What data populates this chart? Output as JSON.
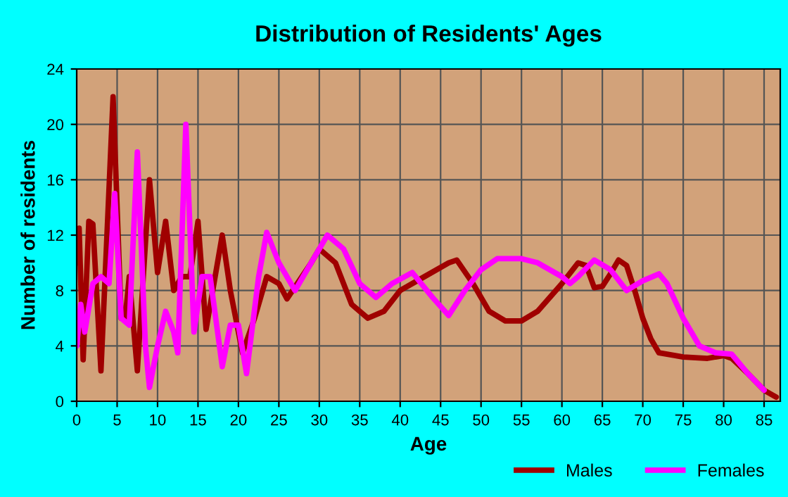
{
  "chart_data": {
    "type": "line",
    "title": "Distribution of Residents' Ages",
    "xlabel": "Age",
    "ylabel": "Number of residents",
    "xlim": [
      0,
      87
    ],
    "xticks": [
      0,
      5,
      10,
      15,
      20,
      25,
      30,
      35,
      40,
      45,
      50,
      55,
      60,
      65,
      70,
      75,
      80,
      85
    ],
    "ylim": [
      0,
      24
    ],
    "yticks": [
      0,
      4,
      8,
      12,
      16,
      20,
      24
    ],
    "grid": true,
    "legend": "bottom right",
    "series": [
      {
        "name": "Males",
        "color": "#a00000",
        "x": [
          0,
          0.3,
          0.8,
          1.5,
          2,
          3,
          4.5,
          5.5,
          6,
          6.5,
          7.5,
          9,
          10,
          11,
          12,
          13,
          14,
          15,
          16,
          18,
          19,
          20.5,
          22,
          23.5,
          25,
          26,
          29,
          30,
          32,
          34,
          36,
          38,
          40,
          43,
          46,
          47,
          49,
          51,
          53,
          55,
          57,
          60,
          62,
          63,
          64,
          65,
          66,
          67,
          68,
          69,
          70,
          71,
          72,
          75,
          78,
          80,
          81,
          83,
          85,
          86.5
        ],
        "values": [
          10,
          12.5,
          3,
          13,
          12.8,
          2.2,
          22,
          6,
          6,
          9,
          2.2,
          16,
          9.3,
          13,
          8,
          9,
          9,
          13,
          5.2,
          12,
          8,
          3.5,
          6,
          9,
          8.5,
          7.4,
          10,
          11,
          10,
          7,
          6,
          6.5,
          8,
          9,
          10,
          10.2,
          8.5,
          6.5,
          5.8,
          5.8,
          6.5,
          8.5,
          10,
          9.8,
          8.2,
          8.3,
          9.2,
          10.2,
          9.8,
          8,
          6,
          4.5,
          3.5,
          3.2,
          3.1,
          3.3,
          3.1,
          2,
          0.8,
          0.3
        ]
      },
      {
        "name": "Females",
        "color": "#ff00ff",
        "x": [
          0,
          0.5,
          1,
          2,
          3,
          4,
          4.7,
          5.5,
          6.5,
          7.5,
          8.5,
          9,
          10,
          11,
          12,
          12.5,
          13.5,
          14.5,
          15.5,
          16.5,
          18,
          19,
          20,
          21,
          22.5,
          23.5,
          25,
          27,
          29,
          31,
          33,
          35,
          37,
          39,
          41.5,
          44,
          46,
          48,
          50,
          52,
          55,
          57,
          60,
          61,
          62,
          64,
          66,
          68,
          70,
          72,
          73,
          75,
          77,
          79,
          81,
          83,
          85
        ],
        "values": [
          4,
          7,
          5,
          8.5,
          9,
          8.5,
          15,
          6,
          5.5,
          18,
          4,
          1,
          4,
          6.5,
          5,
          3.5,
          20,
          5,
          9,
          9,
          2.5,
          5.5,
          5.5,
          2,
          9,
          12.2,
          10,
          8,
          10,
          12,
          11,
          8.5,
          7.5,
          8.5,
          9.3,
          7.5,
          6.2,
          8,
          9.5,
          10.3,
          10.3,
          10,
          9,
          8.5,
          9,
          10.2,
          9.5,
          8,
          8.7,
          9.2,
          8.5,
          6,
          4,
          3.5,
          3.4,
          2,
          0.8
        ]
      }
    ]
  }
}
